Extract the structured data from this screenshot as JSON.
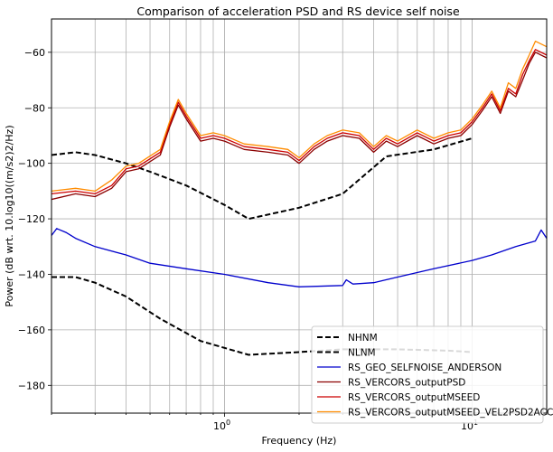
{
  "chart_data": {
    "type": "line",
    "title": "Comparison of acceleration PSD and RS device self noise",
    "xlabel": "Frequency (Hz)",
    "ylabel": "Power (dB wrt. 10.log10((m/s2)2/Hz)",
    "xscale": "log",
    "xlim": [
      0.2,
      20
    ],
    "ylim": [
      -190,
      -48
    ],
    "xticks": [
      {
        "value": 1,
        "label": "10^0"
      },
      {
        "value": 10,
        "label": "10^1"
      }
    ],
    "yticks": [
      -180,
      -160,
      -140,
      -120,
      -100,
      -80,
      -60
    ],
    "grid": true,
    "legend": "bottom-right",
    "series": [
      {
        "name": "NHNM",
        "color": "#000000",
        "style": "dashed",
        "x": [
          0.2,
          0.25,
          0.3,
          0.4,
          0.5,
          0.7,
          1.0,
          1.25,
          2.0,
          3.0,
          4.5,
          7.0,
          10.0
        ],
        "y": [
          -97,
          -96,
          -97,
          -100,
          -103,
          -108,
          -115,
          -120,
          -116,
          -111,
          -97.5,
          -95,
          -91
        ]
      },
      {
        "name": "NLNM",
        "color": "#000000",
        "style": "dashed",
        "x": [
          0.2,
          0.25,
          0.3,
          0.4,
          0.55,
          0.8,
          1.25,
          2.0,
          3.0,
          5.0,
          8.0,
          10.0
        ],
        "y": [
          -141,
          -141,
          -143,
          -148,
          -156,
          -164,
          -169,
          -168,
          -167,
          -167,
          -167.5,
          -168
        ]
      },
      {
        "name": "RS_GEO_SELFNOISE_ANDERSON",
        "color": "#0000cc",
        "style": "solid",
        "x": [
          0.2,
          0.21,
          0.23,
          0.25,
          0.3,
          0.4,
          0.5,
          0.7,
          1.0,
          1.5,
          2.0,
          3.0,
          3.1,
          3.3,
          4.0,
          5.0,
          7.0,
          10.0,
          12.0,
          15.0,
          18.0,
          19.0,
          20.0
        ],
        "y": [
          -126,
          -123.5,
          -125,
          -127,
          -130,
          -133,
          -136,
          -138,
          -140,
          -143,
          -144.5,
          -144,
          -142,
          -143.5,
          -143,
          -141,
          -138,
          -135,
          -133,
          -130,
          -128,
          -124,
          -127
        ]
      },
      {
        "name": "RS_VERCORS_outputPSD",
        "color": "#8b0000",
        "style": "solid",
        "x": [
          0.2,
          0.25,
          0.3,
          0.35,
          0.4,
          0.45,
          0.55,
          0.6,
          0.65,
          0.7,
          0.8,
          0.9,
          1.0,
          1.2,
          1.5,
          1.8,
          2.0,
          2.3,
          2.6,
          3.0,
          3.5,
          4.0,
          4.5,
          5.0,
          6.0,
          7.0,
          8.0,
          9.0,
          10.0,
          11.0,
          12.0,
          13.0,
          14.0,
          15.0,
          16.0,
          17.0,
          18.0,
          20.0
        ],
        "y": [
          -113,
          -111,
          -112,
          -109,
          -103,
          -102,
          -97,
          -87,
          -79,
          -84,
          -92,
          -91,
          -92,
          -95,
          -96,
          -97,
          -100,
          -95,
          -92,
          -90,
          -91,
          -96,
          -92,
          -94,
          -90,
          -93,
          -91,
          -90,
          -86,
          -81,
          -76,
          -82,
          -74,
          -76,
          -70,
          -64,
          -60,
          -62
        ]
      },
      {
        "name": "RS_VERCORS_outputMSEED",
        "color": "#cc0000",
        "style": "solid",
        "x": [
          0.2,
          0.25,
          0.3,
          0.35,
          0.4,
          0.45,
          0.55,
          0.6,
          0.65,
          0.7,
          0.8,
          0.9,
          1.0,
          1.2,
          1.5,
          1.8,
          2.0,
          2.3,
          2.6,
          3.0,
          3.5,
          4.0,
          4.5,
          5.0,
          6.0,
          7.0,
          8.0,
          9.0,
          10.0,
          11.0,
          12.0,
          13.0,
          14.0,
          15.0,
          16.0,
          17.0,
          18.0,
          20.0
        ],
        "y": [
          -111,
          -110,
          -111,
          -108,
          -102,
          -101,
          -96,
          -86,
          -78,
          -83,
          -91,
          -90,
          -91,
          -94,
          -95,
          -96,
          -99,
          -94,
          -91,
          -89,
          -90,
          -95,
          -91,
          -93,
          -89,
          -92,
          -90,
          -89,
          -85,
          -80,
          -75,
          -81,
          -73,
          -75,
          -68,
          -63,
          -59,
          -61
        ]
      },
      {
        "name": "RS_VERCORS_outputMSEED_VEL2PSD2ACC",
        "color": "#ff8c00",
        "style": "solid",
        "x": [
          0.2,
          0.25,
          0.3,
          0.35,
          0.4,
          0.45,
          0.55,
          0.6,
          0.65,
          0.7,
          0.8,
          0.9,
          1.0,
          1.2,
          1.5,
          1.8,
          2.0,
          2.3,
          2.6,
          3.0,
          3.5,
          4.0,
          4.5,
          5.0,
          6.0,
          7.0,
          8.0,
          9.0,
          10.0,
          11.0,
          12.0,
          13.0,
          14.0,
          15.0,
          16.0,
          17.0,
          18.0,
          20.0
        ],
        "y": [
          -110,
          -109,
          -110,
          -106,
          -101,
          -100,
          -95,
          -85,
          -77,
          -82,
          -90,
          -89,
          -90,
          -93,
          -94,
          -95,
          -98,
          -93,
          -90,
          -88,
          -89,
          -94,
          -90,
          -92,
          -88,
          -91,
          -89,
          -88,
          -84,
          -79,
          -74,
          -80,
          -71,
          -73,
          -66,
          -61,
          -56,
          -58
        ]
      }
    ]
  }
}
